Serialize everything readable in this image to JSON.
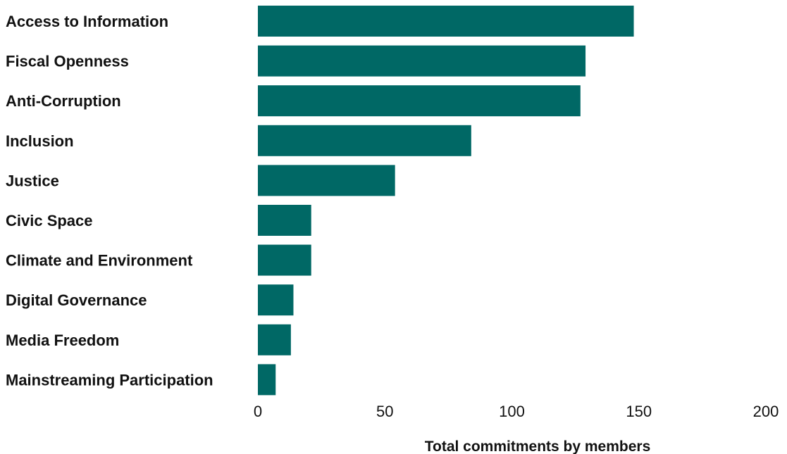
{
  "chart_data": {
    "type": "bar",
    "orientation": "horizontal",
    "categories": [
      "Access to Information",
      "Fiscal Openness",
      "Anti-Corruption",
      "Inclusion",
      "Justice",
      "Civic Space",
      "Climate and Environment",
      "Digital Governance",
      "Media Freedom",
      "Mainstreaming Participation"
    ],
    "values": [
      148,
      129,
      127,
      84,
      54,
      21,
      21,
      14,
      13,
      7
    ],
    "xlabel": "Total commitments by members",
    "ylabel": "",
    "xlim": [
      0,
      200
    ],
    "xticks": [
      "0",
      "50",
      "100",
      "150",
      "200"
    ],
    "xtick_values": [
      0,
      50,
      100,
      150,
      200
    ],
    "grid": false,
    "bar_color": "#006865"
  }
}
